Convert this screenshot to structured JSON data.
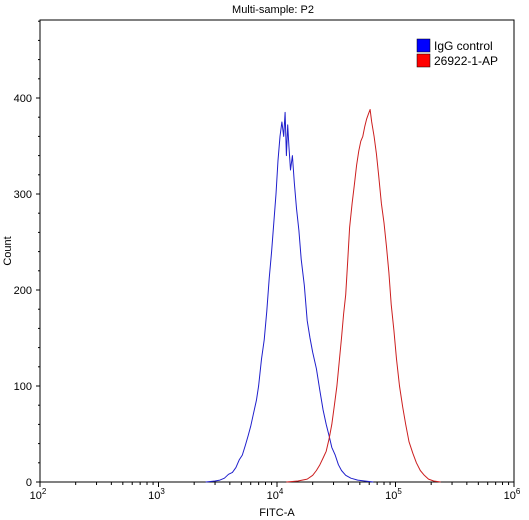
{
  "chart_data": {
    "type": "line",
    "title": "Multi-sample: P2",
    "xlabel": "FITC-A",
    "ylabel": "Count",
    "xscale": "log",
    "xlim": [
      100,
      1000000
    ],
    "ylim": [
      0,
      500
    ],
    "x_ticks": [
      {
        "value": 100,
        "base": "10",
        "exp": "2"
      },
      {
        "value": 1000,
        "base": "10",
        "exp": "3"
      },
      {
        "value": 10000,
        "base": "10",
        "exp": "4"
      },
      {
        "value": 100000,
        "base": "10",
        "exp": "5"
      },
      {
        "value": 1000000,
        "base": "10",
        "exp": "6"
      }
    ],
    "y_ticks": [
      0,
      100,
      200,
      300,
      400
    ],
    "legend_position": "top-right",
    "grid": false,
    "series": [
      {
        "name": "IgG control",
        "color": "#1f1fcc",
        "legend_color": "#0000ff",
        "points": [
          [
            2500,
            0
          ],
          [
            3000,
            1
          ],
          [
            3300,
            2
          ],
          [
            3600,
            4
          ],
          [
            3900,
            8
          ],
          [
            4200,
            10
          ],
          [
            4500,
            15
          ],
          [
            4800,
            23
          ],
          [
            5100,
            28
          ],
          [
            5400,
            38
          ],
          [
            5700,
            48
          ],
          [
            6000,
            58
          ],
          [
            6300,
            70
          ],
          [
            6700,
            85
          ],
          [
            7000,
            100
          ],
          [
            7400,
            128
          ],
          [
            7800,
            148
          ],
          [
            8200,
            178
          ],
          [
            8600,
            212
          ],
          [
            9000,
            240
          ],
          [
            9400,
            270
          ],
          [
            9800,
            300
          ],
          [
            10200,
            335
          ],
          [
            10600,
            360
          ],
          [
            11000,
            375
          ],
          [
            11400,
            360
          ],
          [
            11700,
            385
          ],
          [
            12000,
            340
          ],
          [
            12300,
            372
          ],
          [
            12600,
            350
          ],
          [
            13000,
            325
          ],
          [
            13500,
            340
          ],
          [
            14000,
            312
          ],
          [
            14600,
            285
          ],
          [
            15300,
            262
          ],
          [
            16000,
            232
          ],
          [
            17000,
            205
          ],
          [
            18000,
            168
          ],
          [
            19000,
            150
          ],
          [
            20000,
            135
          ],
          [
            21500,
            118
          ],
          [
            23000,
            95
          ],
          [
            24500,
            75
          ],
          [
            26000,
            60
          ],
          [
            27500,
            48
          ],
          [
            29000,
            36
          ],
          [
            31000,
            28
          ],
          [
            33000,
            18
          ],
          [
            35000,
            12
          ],
          [
            38000,
            7
          ],
          [
            42000,
            4
          ],
          [
            48000,
            2
          ],
          [
            55000,
            1
          ],
          [
            65000,
            0
          ]
        ]
      },
      {
        "name": "26922-1-AP",
        "color": "#cc1f1f",
        "legend_color": "#ff0000",
        "points": [
          [
            12000,
            0
          ],
          [
            15000,
            1
          ],
          [
            18000,
            3
          ],
          [
            20000,
            7
          ],
          [
            21500,
            12
          ],
          [
            23000,
            18
          ],
          [
            24500,
            25
          ],
          [
            26000,
            32
          ],
          [
            27500,
            45
          ],
          [
            29000,
            60
          ],
          [
            30500,
            80
          ],
          [
            32000,
            100
          ],
          [
            33500,
            125
          ],
          [
            35000,
            150
          ],
          [
            36500,
            175
          ],
          [
            38000,
            195
          ],
          [
            39500,
            230
          ],
          [
            41000,
            265
          ],
          [
            43000,
            290
          ],
          [
            45000,
            310
          ],
          [
            47000,
            330
          ],
          [
            49000,
            345
          ],
          [
            51000,
            355
          ],
          [
            53000,
            360
          ],
          [
            55000,
            370
          ],
          [
            57000,
            378
          ],
          [
            59000,
            383
          ],
          [
            61000,
            388
          ],
          [
            63000,
            375
          ],
          [
            66000,
            360
          ],
          [
            69000,
            342
          ],
          [
            72000,
            320
          ],
          [
            76000,
            290
          ],
          [
            80000,
            270
          ],
          [
            84000,
            245
          ],
          [
            88000,
            218
          ],
          [
            92000,
            185
          ],
          [
            97000,
            158
          ],
          [
            102000,
            128
          ],
          [
            108000,
            100
          ],
          [
            115000,
            78
          ],
          [
            122000,
            60
          ],
          [
            130000,
            42
          ],
          [
            140000,
            30
          ],
          [
            150000,
            20
          ],
          [
            162000,
            12
          ],
          [
            175000,
            7
          ],
          [
            190000,
            3
          ],
          [
            210000,
            1
          ],
          [
            240000,
            0
          ]
        ]
      }
    ]
  }
}
